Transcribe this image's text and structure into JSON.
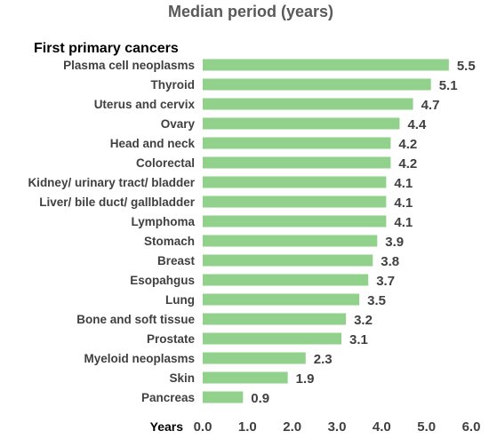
{
  "chart_data": {
    "type": "bar",
    "orientation": "horizontal",
    "title": "Median period (years)",
    "section_label": "First primary cancers",
    "xlabel": "Years",
    "xlim": [
      0,
      6
    ],
    "x_ticks": [
      "0.0",
      "1.0",
      "2.0",
      "3.0",
      "4.0",
      "5.0",
      "6.0"
    ],
    "bar_color": "#92d18b",
    "grid": false,
    "categories": [
      "Plasma cell neoplasms",
      "Thyroid",
      "Uterus and cervix",
      "Ovary",
      "Head and neck",
      "Colorectal",
      "Kidney/ urinary tract/ bladder",
      "Liver/ bile duct/ gallbladder",
      "Lymphoma",
      "Stomach",
      "Breast",
      "Esopahgus",
      "Lung",
      "Bone and soft tissue",
      "Prostate",
      "Myeloid neoplasms",
      "Skin",
      "Pancreas"
    ],
    "values": [
      5.5,
      5.1,
      4.7,
      4.4,
      4.2,
      4.2,
      4.1,
      4.1,
      4.1,
      3.9,
      3.8,
      3.7,
      3.5,
      3.2,
      3.1,
      2.3,
      1.9,
      0.9
    ],
    "value_labels": [
      "5.5",
      "5.1",
      "4.7",
      "4.4",
      "4.2",
      "4.2",
      "4.1",
      "4.1",
      "4.1",
      "3.9",
      "3.8",
      "3.7",
      "3.5",
      "3.2",
      "3.1",
      "2.3",
      "1.9",
      "0.9"
    ]
  }
}
